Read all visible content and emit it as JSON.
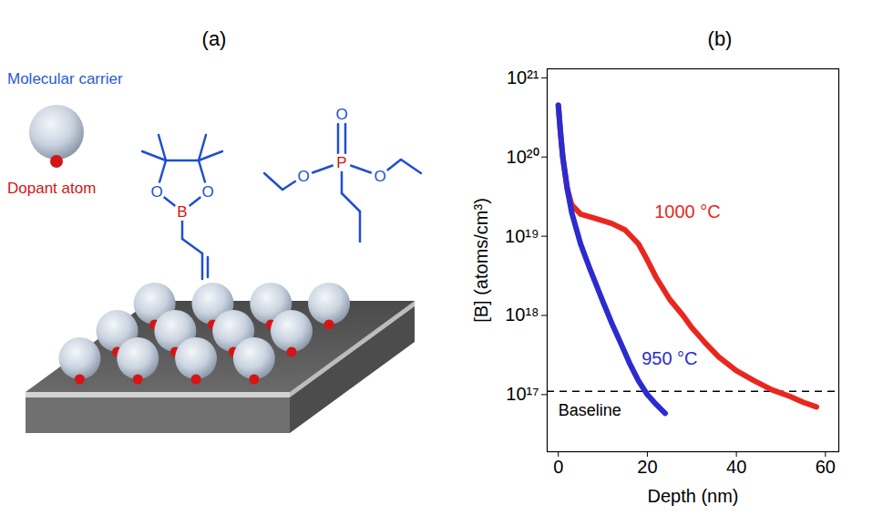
{
  "figure": {
    "panels": [
      {
        "letter": "(a)",
        "diagram": {
          "carrier_label": "Molecular carrier",
          "dopant_label": "Dopant atom",
          "boronate_atoms": [
            "O",
            "O",
            "B"
          ],
          "phosphonate_atoms": [
            "O",
            "P",
            "O",
            "O"
          ]
        }
      },
      {
        "letter": "(b)"
      }
    ]
  },
  "chart_data": {
    "type": "line",
    "x_label": "Depth (nm)",
    "y_label": "[B] (atoms/cm³)",
    "log": "y",
    "grid": false,
    "xlim": [
      -2.5,
      63
    ],
    "xticks": [
      0,
      20,
      40,
      60
    ],
    "ylim": [
      1.9e+16,
      1.3e+21
    ],
    "yticks": [
      {
        "value": 1e+17,
        "label": "10¹⁷"
      },
      {
        "value": 1e+18,
        "label": "10¹⁸"
      },
      {
        "value": 1e+19,
        "label": "10¹⁹"
      },
      {
        "value": 1e+20,
        "label": "10²⁰"
      },
      {
        "value": 1e+21,
        "label": "10²¹"
      }
    ],
    "series": [
      {
        "name": "1000 °C",
        "color": "#e8281e",
        "label_position": [
          29,
          2e+19
        ],
        "x": [
          0,
          0.5,
          1,
          2,
          3,
          5,
          8,
          12,
          15,
          18,
          20,
          22,
          25,
          28,
          30,
          33,
          36,
          40,
          44,
          48,
          52,
          55,
          58
        ],
        "values": [
          4.5e+20,
          2e+20,
          1e+20,
          4e+19,
          2.5e+19,
          1.9e+19,
          1.7e+19,
          1.45e+19,
          1.2e+19,
          8e+18,
          5e+18,
          3e+18,
          1.6e+18,
          1e+18,
          7e+17,
          4.5e+17,
          3e+17,
          2e+17,
          1.5e+17,
          1.15e+17,
          9.5e+16,
          8e+16,
          7e+16
        ]
      },
      {
        "name": "950 °C",
        "color": "#2b2bd0",
        "label_position": [
          25,
          2.8e+17
        ],
        "x": [
          0,
          0.5,
          1,
          2,
          3,
          5,
          7,
          10,
          12,
          14,
          16,
          18,
          20,
          22,
          24
        ],
        "values": [
          4.5e+20,
          2e+20,
          1e+20,
          4e+19,
          2e+19,
          8e+18,
          4e+18,
          1.5e+18,
          8e+17,
          4.5e+17,
          2.5e+17,
          1.5e+17,
          1e+17,
          7.5e+16,
          5.8e+16
        ]
      }
    ],
    "reference_lines": [
      {
        "label": "Baseline",
        "y": 1.1e+17,
        "line_style": "dashed",
        "label_position": [
          0,
          6.3e+16
        ]
      }
    ]
  }
}
